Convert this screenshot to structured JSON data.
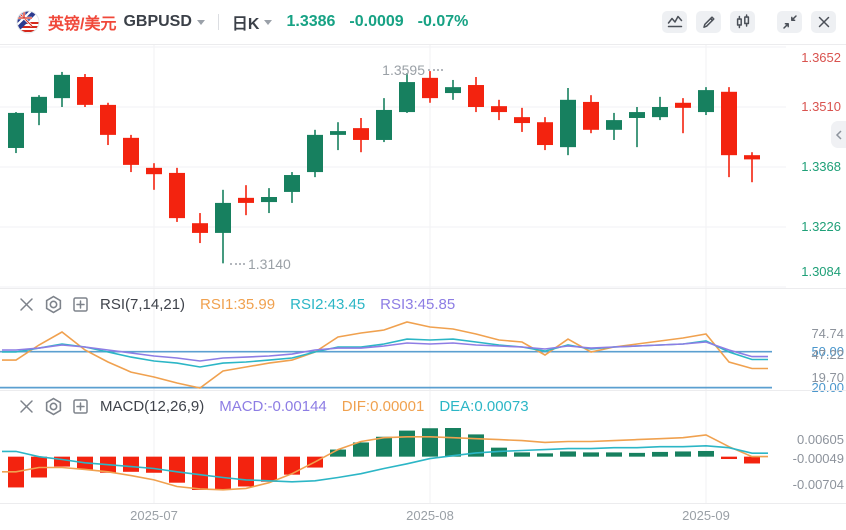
{
  "header": {
    "symbol_cn": "英镑/美元",
    "symbol": "GBPUSD",
    "period": "日K",
    "price": "1.3386",
    "change": "-0.0009",
    "change_pct": "-0.07%",
    "price_color": "#17a284",
    "toolbar": [
      "line-chart",
      "draw",
      "candlestick",
      "collapse",
      "close"
    ]
  },
  "panes": {
    "rsi": {
      "title": "RSI(7,14,21)",
      "values": [
        {
          "label": "RSI1:35.99",
          "color": "#f0a14f"
        },
        {
          "label": "RSI2:43.45",
          "color": "#2cb6c6"
        },
        {
          "label": "RSI3:45.85",
          "color": "#8d7de4"
        }
      ]
    },
    "macd": {
      "title": "MACD(12,26,9)",
      "values": [
        {
          "label": "MACD:-0.00144",
          "color": "#8d7de4"
        },
        {
          "label": "DIF:0.00001",
          "color": "#f0a14f"
        },
        {
          "label": "DEA:0.00073",
          "color": "#2cb6c6"
        }
      ]
    }
  },
  "chart_data": {
    "type": "candlestick+indicators",
    "x_axis": [
      {
        "index": 6,
        "label": "2025-07"
      },
      {
        "index": 18,
        "label": "2025-08"
      },
      {
        "index": 30,
        "label": "2025-09"
      }
    ],
    "main": {
      "up_color": "#17805f",
      "down_color": "#f3230f",
      "y_axis": [
        {
          "label": "1.3652",
          "value": 1.3652,
          "tone": "red"
        },
        {
          "label": "1.3510",
          "value": 1.351,
          "tone": "red"
        },
        {
          "label": "1.3368",
          "value": 1.3368,
          "tone": "green"
        },
        {
          "label": "1.3226",
          "value": 1.3226,
          "tone": "green"
        },
        {
          "label": "1.3084",
          "value": 1.3084,
          "tone": "green"
        }
      ],
      "annotations": {
        "high": "1.3595",
        "low": "1.3140"
      },
      "candles": [
        [
          1.3413,
          1.3498,
          1.3401,
          1.3496
        ],
        [
          1.3496,
          1.3538,
          1.3467,
          1.3534
        ],
        [
          1.3531,
          1.3593,
          1.351,
          1.3586
        ],
        [
          1.3581,
          1.3588,
          1.351,
          1.3515
        ],
        [
          1.3515,
          1.352,
          1.342,
          1.3444
        ],
        [
          1.3437,
          1.3444,
          1.3356,
          1.3373
        ],
        [
          1.3366,
          1.3377,
          1.3314,
          1.3351
        ],
        [
          1.3354,
          1.3366,
          1.3238,
          1.3247
        ],
        [
          1.3235,
          1.3259,
          1.3188,
          1.3212
        ],
        [
          1.3212,
          1.3314,
          1.314,
          1.3283
        ],
        [
          1.3295,
          1.3325,
          1.3254,
          1.3283
        ],
        [
          1.3285,
          1.3318,
          1.3259,
          1.3297
        ],
        [
          1.3309,
          1.3356,
          1.3283,
          1.3349
        ],
        [
          1.3356,
          1.3456,
          1.3344,
          1.3444
        ],
        [
          1.3444,
          1.3474,
          1.3408,
          1.3453
        ],
        [
          1.346,
          1.3484,
          1.3403,
          1.3432
        ],
        [
          1.3432,
          1.3531,
          1.3427,
          1.3503
        ],
        [
          1.3498,
          1.359,
          1.3496,
          1.3569
        ],
        [
          1.3579,
          1.3595,
          1.352,
          1.3531
        ],
        [
          1.3543,
          1.3574,
          1.3527,
          1.3557
        ],
        [
          1.3562,
          1.3581,
          1.3498,
          1.351
        ],
        [
          1.3512,
          1.3527,
          1.3479,
          1.3498
        ],
        [
          1.3486,
          1.3508,
          1.3451,
          1.3472
        ],
        [
          1.3474,
          1.3486,
          1.3408,
          1.342
        ],
        [
          1.3415,
          1.3555,
          1.3396,
          1.3527
        ],
        [
          1.3522,
          1.3538,
          1.3448,
          1.3456
        ],
        [
          1.3456,
          1.3496,
          1.3432,
          1.3479
        ],
        [
          1.3484,
          1.351,
          1.3415,
          1.3498
        ],
        [
          1.3486,
          1.3534,
          1.3479,
          1.351
        ],
        [
          1.352,
          1.3531,
          1.3448,
          1.3508
        ],
        [
          1.3498,
          1.3557,
          1.3491,
          1.355
        ],
        [
          1.3546,
          1.3557,
          1.3344,
          1.3396
        ],
        [
          1.3396,
          1.3403,
          1.3332,
          1.3386
        ]
      ]
    },
    "rsi": {
      "axis": [
        "74.74",
        "47.22",
        "19.70"
      ],
      "axis_values": [
        74.74,
        47.22,
        19.7
      ],
      "level_color": "#5b9fd0",
      "levels": [
        {
          "label": "50.00",
          "value": 50
        },
        {
          "label": "20.00",
          "value": 20
        }
      ],
      "series": [
        {
          "name": "RSI1",
          "color": "#f0a14f",
          "values": [
            43.0,
            55.6,
            66.4,
            51.4,
            41.4,
            33.0,
            28.9,
            23.9,
            19.7,
            33.9,
            37.2,
            40.5,
            43.0,
            49.7,
            62.2,
            65.6,
            68.1,
            74.74,
            70.6,
            68.9,
            64.7,
            59.7,
            58.1,
            47.2,
            60.5,
            49.7,
            53.9,
            56.4,
            58.9,
            61.4,
            64.7,
            41.4,
            35.99
          ]
        },
        {
          "name": "RSI2",
          "color": "#2cb6c6",
          "values": [
            49.7,
            53.0,
            56.4,
            53.9,
            49.7,
            45.5,
            42.2,
            40.5,
            37.2,
            40.5,
            41.4,
            43.0,
            44.7,
            49.7,
            53.9,
            53.9,
            56.4,
            60.5,
            59.7,
            60.5,
            58.1,
            55.6,
            53.9,
            50.5,
            55.6,
            52.2,
            53.9,
            54.7,
            55.6,
            56.4,
            58.9,
            49.7,
            43.45
          ]
        },
        {
          "name": "RSI3",
          "color": "#8d7de4",
          "values": [
            51.4,
            53.0,
            55.6,
            53.9,
            51.4,
            48.9,
            46.4,
            44.7,
            42.2,
            44.7,
            45.5,
            46.4,
            48.0,
            51.4,
            53.0,
            53.0,
            54.7,
            57.2,
            56.4,
            57.2,
            55.6,
            54.7,
            53.9,
            52.2,
            54.7,
            53.0,
            53.9,
            54.7,
            55.6,
            56.4,
            58.1,
            51.4,
            45.85
          ]
        }
      ]
    },
    "macd": {
      "axis": [
        {
          "label": "0.00605",
          "value": 0.00605
        },
        {
          "label": "-0.00049",
          "value": -0.00049
        },
        {
          "label": "-0.00704",
          "value": -0.00704
        }
      ],
      "histogram": [
        -0.0065,
        -0.0044,
        -0.0021,
        -0.0027,
        -0.0034,
        -0.0032,
        -0.0034,
        -0.0055,
        -0.00704,
        -0.007,
        -0.0063,
        -0.0053,
        -0.0038,
        -0.0023,
        0.0015,
        0.003,
        0.0042,
        0.0055,
        0.006,
        0.00605,
        0.0047,
        0.0019,
        0.0009,
        0.0007,
        0.0011,
        0.0009,
        0.0009,
        0.0008,
        0.001,
        0.0011,
        0.0012,
        -0.0005,
        -0.00144
      ],
      "dif": {
        "name": "DIF",
        "color": "#f0a14f",
        "values": [
          -0.0032,
          -0.0023,
          -0.0023,
          -0.0027,
          -0.0032,
          -0.004,
          -0.0049,
          -0.0063,
          -0.0068,
          -0.007,
          -0.0067,
          -0.0055,
          -0.0036,
          -0.0011,
          0.0015,
          0.0032,
          0.004,
          0.0042,
          0.0042,
          0.004,
          0.0038,
          0.0036,
          0.0034,
          0.003,
          0.0032,
          0.0032,
          0.0034,
          0.0036,
          0.0038,
          0.004,
          0.0046,
          0.0021,
          1e-05
        ]
      },
      "dea": {
        "name": "DEA",
        "color": "#2cb6c6",
        "values": [
          0.0011,
          0.0,
          -0.0006,
          -0.0013,
          -0.0017,
          -0.0021,
          -0.0025,
          -0.0032,
          -0.0038,
          -0.0044,
          -0.0049,
          -0.0051,
          -0.0053,
          -0.0051,
          -0.0044,
          -0.0036,
          -0.0025,
          -0.0015,
          -0.0004,
          0.0002,
          0.0008,
          0.0011,
          0.0013,
          0.0015,
          0.0017,
          0.0017,
          0.0019,
          0.0019,
          0.0021,
          0.0021,
          0.0023,
          0.0019,
          0.00073
        ]
      }
    }
  }
}
